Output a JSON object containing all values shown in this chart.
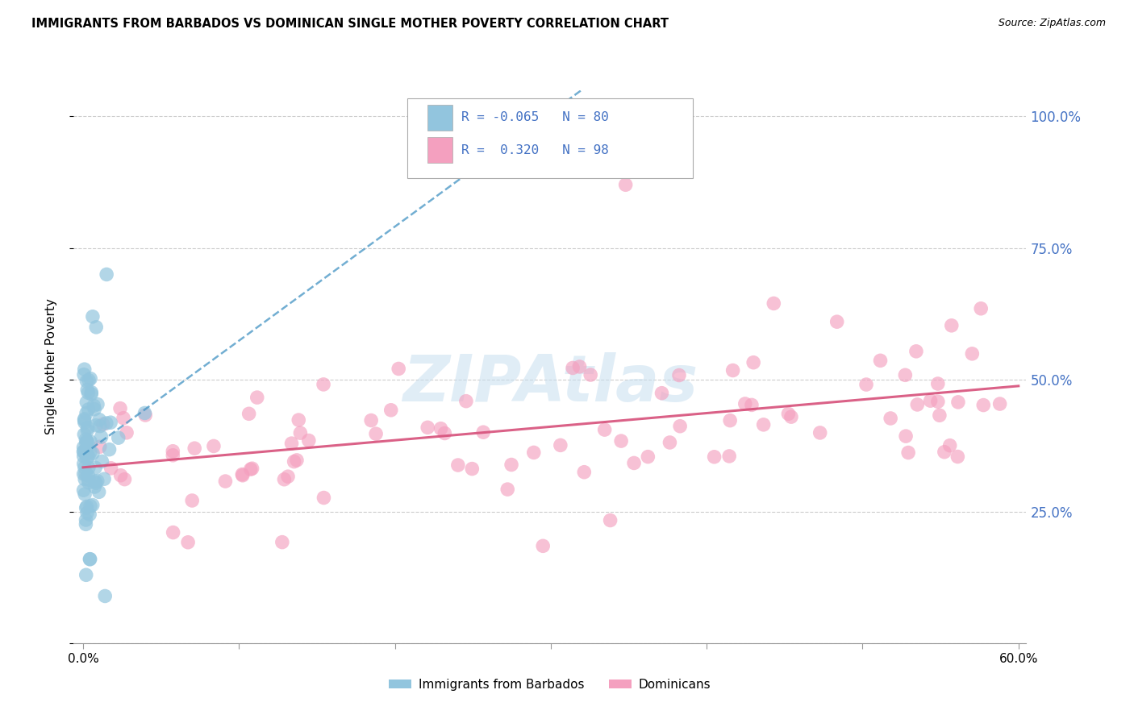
{
  "title": "IMMIGRANTS FROM BARBADOS VS DOMINICAN SINGLE MOTHER POVERTY CORRELATION CHART",
  "source": "Source: ZipAtlas.com",
  "ylabel": "Single Mother Poverty",
  "xlim": [
    0.0,
    0.6
  ],
  "ylim": [
    0.0,
    1.05
  ],
  "ytick_positions": [
    0.0,
    0.25,
    0.5,
    0.75,
    1.0
  ],
  "ytick_labels_right": [
    "",
    "25.0%",
    "50.0%",
    "75.0%",
    "100.0%"
  ],
  "xtick_positions": [
    0.0,
    0.1,
    0.2,
    0.3,
    0.4,
    0.5,
    0.6
  ],
  "xtick_labels": [
    "0.0%",
    "",
    "",
    "",
    "",
    "",
    "60.0%"
  ],
  "legend_label1": "Immigrants from Barbados",
  "legend_label2": "Dominicans",
  "R1": -0.065,
  "N1": 80,
  "R2": 0.32,
  "N2": 98,
  "color1": "#92c5de",
  "color2": "#f4a0bf",
  "color1_line": "#4393c3",
  "color2_line": "#d6507a",
  "right_tick_color": "#4472c4",
  "legend_text_color": "#4472c4",
  "watermark_color": "#c8dff0",
  "watermark_text": "ZIPAtlas"
}
